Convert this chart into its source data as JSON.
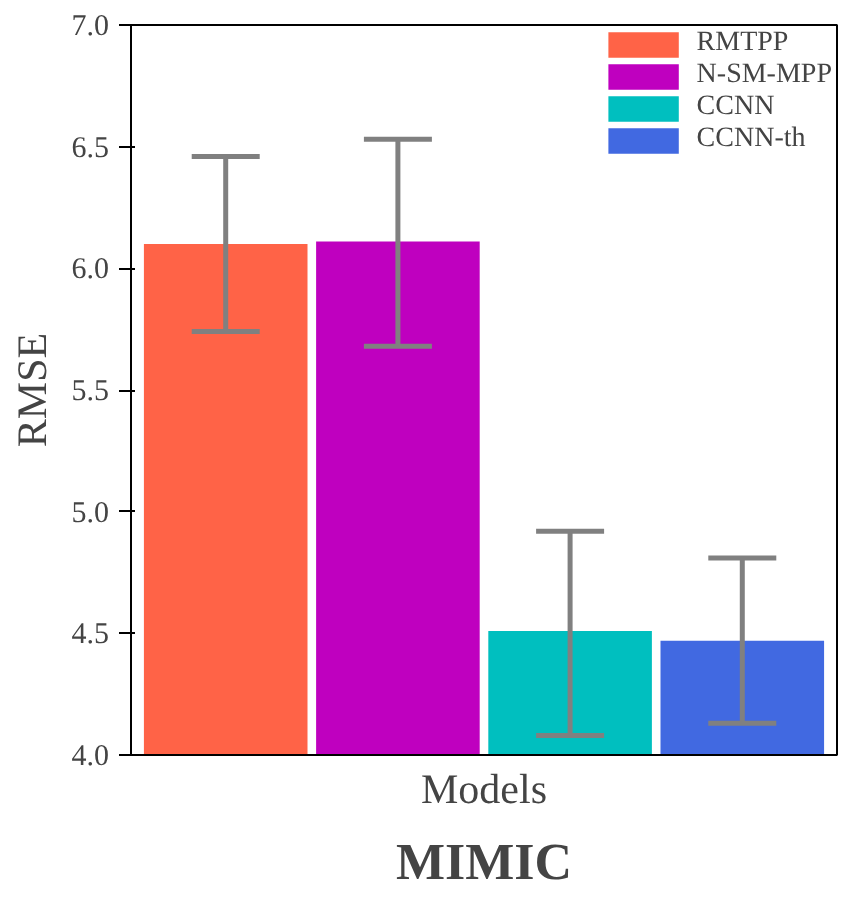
{
  "chart_data": {
    "type": "bar",
    "title": "MIMIC",
    "xlabel": "Models",
    "ylabel": "RMSE",
    "categories": [
      null,
      null,
      null,
      null
    ],
    "series": [
      {
        "name": "RMTPP",
        "color": "#ff6347",
        "values": [
          6.1,
          null,
          null,
          null
        ],
        "errors": [
          [
            5.74,
            6.46
          ],
          null,
          null,
          null
        ]
      },
      {
        "name": "N-SM-MPP",
        "color": "#bf00bf",
        "values": [
          null,
          6.11,
          null,
          null
        ],
        "errors": [
          null,
          [
            5.68,
            6.53
          ],
          null,
          null
        ]
      },
      {
        "name": "CCNN",
        "color": "#00bfbf",
        "values": [
          null,
          null,
          4.51,
          null
        ],
        "errors": [
          null,
          null,
          [
            4.08,
            4.92
          ],
          null
        ]
      },
      {
        "name": "CCNN-th",
        "color": "#4169e1",
        "values": [
          null,
          null,
          null,
          4.47
        ],
        "errors": [
          null,
          null,
          null,
          [
            4.13,
            4.81
          ]
        ]
      }
    ],
    "ylim": [
      4.0,
      7.0
    ],
    "yticks": [
      {
        "value": 4.0,
        "label": "4.0"
      },
      {
        "value": 4.5,
        "label": "4.5"
      },
      {
        "value": 5.0,
        "label": "5.0"
      },
      {
        "value": 5.5,
        "label": "5.5"
      },
      {
        "value": 6.0,
        "label": "6.0"
      },
      {
        "value": 6.5,
        "label": "6.5"
      },
      {
        "value": 7.0,
        "label": "7.0"
      }
    ],
    "grid": false,
    "legend": "top right"
  }
}
